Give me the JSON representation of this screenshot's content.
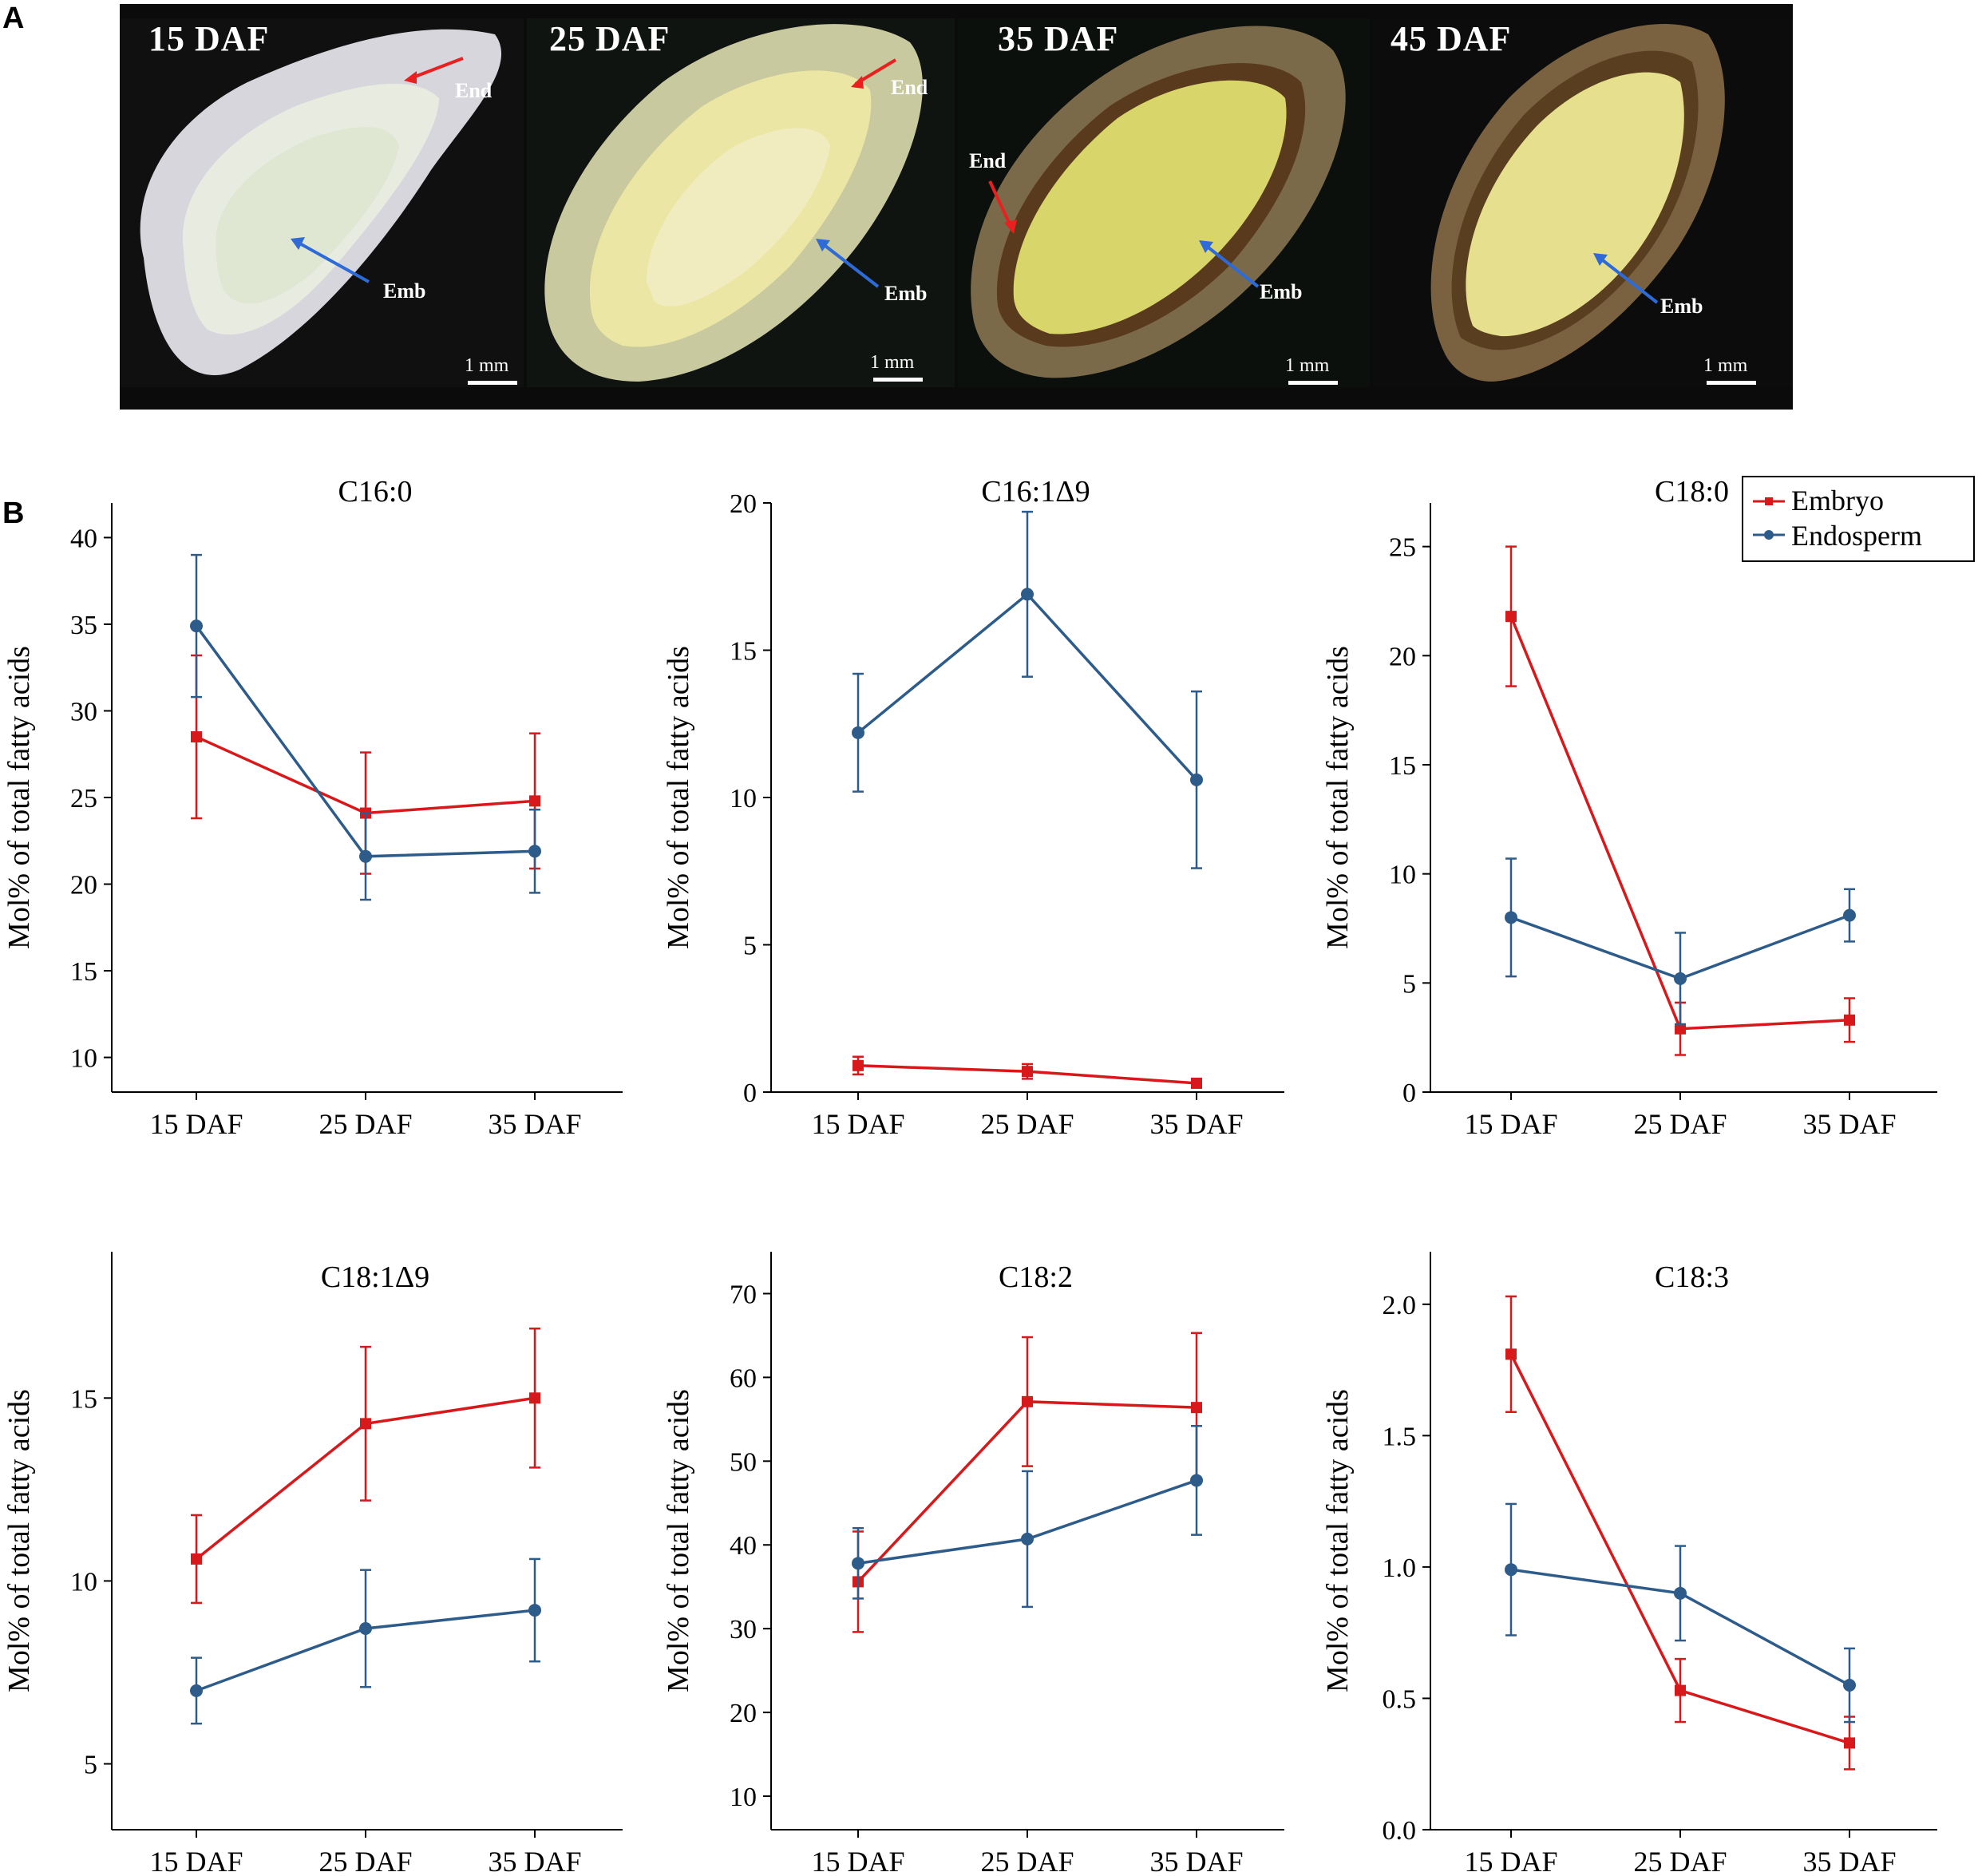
{
  "panels": {
    "a_label": "A",
    "b_label": "B",
    "seed_images": [
      {
        "title": "15 DAF",
        "end_label": "End",
        "emb_label": "Emb",
        "scale": "1 mm"
      },
      {
        "title": "25 DAF",
        "end_label": "End",
        "emb_label": "Emb",
        "scale": "1 mm"
      },
      {
        "title": "35 DAF",
        "end_label": "End",
        "emb_label": "Emb",
        "scale": "1 mm"
      },
      {
        "title": "45 DAF",
        "end_label": "",
        "emb_label": "Emb",
        "scale": "1 mm"
      }
    ]
  },
  "colors": {
    "embryo": "#d7191c",
    "endosperm": "#2e5c8a",
    "end_arrow": "#e8201f",
    "emb_arrow": "#2e6bd6"
  },
  "legend": {
    "embryo": "Embryo",
    "endosperm": "Endosperm"
  },
  "chart_data": [
    {
      "type": "line",
      "title": "C16:0",
      "ylabel": "Mol% of total fatty acids",
      "categories": [
        "15 DAF",
        "25 DAF",
        "35 DAF"
      ],
      "ylim": [
        8,
        42
      ],
      "yticks": [
        10,
        15,
        20,
        25,
        30,
        35,
        40
      ],
      "ytick_labels": [
        "10",
        "15",
        "20",
        "25",
        "30",
        "35",
        "40"
      ],
      "series": [
        {
          "name": "Embryo",
          "values": [
            28.5,
            24.1,
            24.8
          ],
          "errors": [
            4.7,
            3.5,
            3.9
          ]
        },
        {
          "name": "Endosperm",
          "values": [
            34.9,
            21.6,
            21.9
          ],
          "errors": [
            4.1,
            2.5,
            2.4
          ]
        }
      ]
    },
    {
      "type": "line",
      "title": "C16:1Δ9",
      "ylabel": "Mol% of total fatty acids",
      "categories": [
        "15 DAF",
        "25 DAF",
        "35 DAF"
      ],
      "ylim": [
        0,
        20
      ],
      "yticks": [
        0,
        5,
        10,
        15,
        20
      ],
      "ytick_labels": [
        "0",
        "5",
        "10",
        "15",
        "20"
      ],
      "series": [
        {
          "name": "Embryo",
          "values": [
            0.9,
            0.7,
            0.3
          ],
          "errors": [
            0.3,
            0.25,
            0.15
          ]
        },
        {
          "name": "Endosperm",
          "values": [
            12.2,
            16.9,
            10.6
          ],
          "errors": [
            2.0,
            2.8,
            3.0
          ]
        }
      ]
    },
    {
      "type": "line",
      "title": "C18:0",
      "ylabel": "Mol% of total fatty acids",
      "categories": [
        "15 DAF",
        "25 DAF",
        "35 DAF"
      ],
      "ylim": [
        0,
        27
      ],
      "yticks": [
        0,
        5,
        10,
        15,
        20,
        25
      ],
      "ytick_labels": [
        "0",
        "5",
        "10",
        "15",
        "20",
        "25"
      ],
      "series": [
        {
          "name": "Embryo",
          "values": [
            21.8,
            2.9,
            3.3
          ],
          "errors": [
            3.2,
            1.2,
            1.0
          ]
        },
        {
          "name": "Endosperm",
          "values": [
            8.0,
            5.2,
            8.1
          ],
          "errors": [
            2.7,
            2.1,
            1.2
          ]
        }
      ]
    },
    {
      "type": "line",
      "title": "C18:1Δ9",
      "ylabel": "Mol% of total fatty acids",
      "categories": [
        "15 DAF",
        "25 DAF",
        "35 DAF"
      ],
      "ylim": [
        3.2,
        19
      ],
      "yticks": [
        5,
        10,
        15
      ],
      "ytick_labels": [
        "5",
        "10",
        "15"
      ],
      "series": [
        {
          "name": "Embryo",
          "values": [
            10.6,
            14.3,
            15.0
          ],
          "errors": [
            1.2,
            2.1,
            1.9
          ]
        },
        {
          "name": "Endosperm",
          "values": [
            7.0,
            8.7,
            9.2
          ],
          "errors": [
            0.9,
            1.6,
            1.4
          ]
        }
      ]
    },
    {
      "type": "line",
      "title": "C18:2",
      "ylabel": "Mol% of total fatty acids",
      "categories": [
        "15 DAF",
        "25 DAF",
        "35 DAF"
      ],
      "ylim": [
        6,
        75
      ],
      "yticks": [
        10,
        20,
        30,
        40,
        50,
        60,
        70
      ],
      "ytick_labels": [
        "10",
        "20",
        "30",
        "40",
        "50",
        "60",
        "70"
      ],
      "series": [
        {
          "name": "Embryo",
          "values": [
            35.6,
            57.1,
            56.4
          ],
          "errors": [
            6.0,
            7.7,
            8.9
          ]
        },
        {
          "name": "Endosperm",
          "values": [
            37.8,
            40.7,
            47.7
          ],
          "errors": [
            4.2,
            8.1,
            6.5
          ]
        }
      ]
    },
    {
      "type": "line",
      "title": "C18:3",
      "ylabel": "Mol% of total fatty acids",
      "categories": [
        "15 DAF",
        "25 DAF",
        "35 DAF"
      ],
      "ylim": [
        0,
        2.2
      ],
      "yticks": [
        0,
        0.5,
        1.0,
        1.5,
        2.0
      ],
      "ytick_labels": [
        "0.0",
        "0.5",
        "1.0",
        "1.5",
        "2.0"
      ],
      "series": [
        {
          "name": "Embryo",
          "values": [
            1.81,
            0.53,
            0.33
          ],
          "errors": [
            0.22,
            0.12,
            0.1
          ]
        },
        {
          "name": "Endosperm",
          "values": [
            0.99,
            0.9,
            0.55
          ],
          "errors": [
            0.25,
            0.18,
            0.14
          ]
        }
      ]
    }
  ]
}
